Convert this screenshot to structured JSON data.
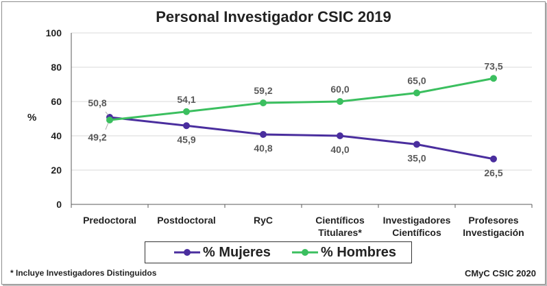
{
  "chart_data": {
    "type": "line",
    "title": "Personal Investigador CSIC 2019",
    "ylabel": "%",
    "xlabel": "",
    "ylim": [
      0,
      100
    ],
    "yticks": [
      0,
      20,
      40,
      60,
      80,
      100
    ],
    "grid": "horizontal",
    "legend": "bottom",
    "categories": [
      [
        "Predoctoral"
      ],
      [
        "Postdoctoral"
      ],
      [
        "RyC"
      ],
      [
        "Científicos",
        "Titulares*"
      ],
      [
        "Investigadores",
        "Científicos"
      ],
      [
        "Profesores",
        "Investigación"
      ]
    ],
    "series": [
      {
        "name": "% Mujeres",
        "color": "#4a2e9e",
        "values": [
          50.8,
          45.9,
          40.8,
          40.0,
          35.0,
          26.5
        ],
        "labels": [
          "50,8",
          "45,9",
          "40,8",
          "40,0",
          "35,0",
          "26,5"
        ]
      },
      {
        "name": "% Hombres",
        "color": "#3bbf5f",
        "values": [
          49.2,
          54.1,
          59.2,
          60.0,
          65.0,
          73.5
        ],
        "labels": [
          "49,2",
          "54,1",
          "59,2",
          "60,0",
          "65,0",
          "73,5"
        ]
      }
    ]
  },
  "footnote": "* Incluye Investigadores Distinguidos",
  "credit": "CMyC CSIC 2020"
}
